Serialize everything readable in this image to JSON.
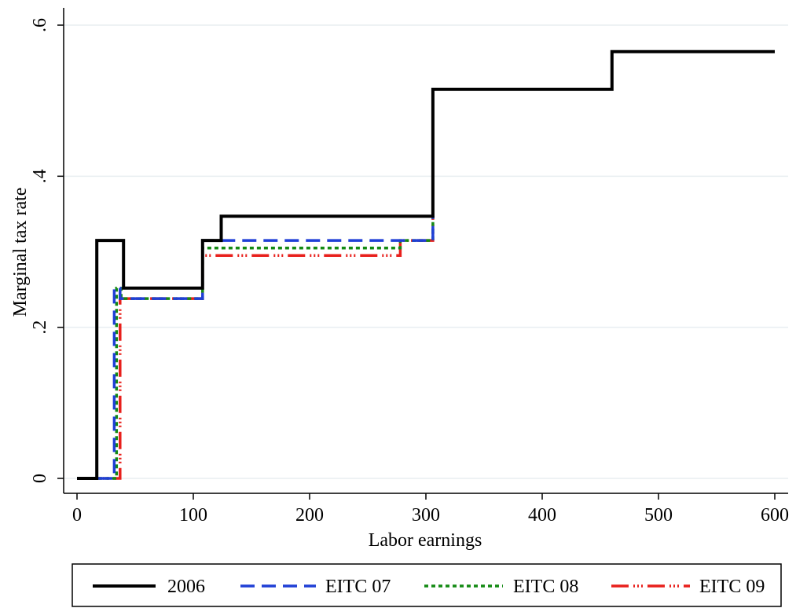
{
  "chart_data": {
    "type": "line",
    "xlabel": "Labor earnings",
    "ylabel": "Marginal tax rate",
    "xlim": [
      0,
      600
    ],
    "ylim": [
      0,
      0.6
    ],
    "x_ticks": [
      0,
      100,
      200,
      300,
      400,
      500,
      600
    ],
    "x_tick_labels": [
      "0",
      "100",
      "200",
      "300",
      "400",
      "500",
      "600"
    ],
    "y_ticks": [
      0,
      0.2,
      0.4,
      0.6
    ],
    "y_tick_labels": [
      "0",
      ".2",
      ".4",
      ".6"
    ],
    "grid": true,
    "legend_position": "bottom",
    "series": [
      {
        "name": "2006",
        "color": "#000000",
        "style": "solid",
        "x": [
          0,
          17,
          17,
          40,
          40,
          108,
          108,
          124,
          124,
          306,
          306,
          460,
          460,
          600
        ],
        "y": [
          0,
          0,
          0.315,
          0.315,
          0.252,
          0.252,
          0.315,
          0.315,
          0.347,
          0.347,
          0.515,
          0.515,
          0.565,
          0.565
        ]
      },
      {
        "name": "EITC 07",
        "color": "#1f3fd6",
        "style": "dash",
        "x": [
          0,
          32,
          32,
          37,
          37,
          108,
          108,
          124,
          124,
          306,
          306
        ],
        "y": [
          0,
          0,
          0.252,
          0.252,
          0.238,
          0.238,
          0.315,
          0.315,
          0.315,
          0.315,
          0.347
        ]
      },
      {
        "name": "EITC 08",
        "color": "#138a13",
        "style": "dot",
        "x": [
          0,
          34,
          34,
          38,
          38,
          108,
          108,
          278,
          278,
          306,
          306
        ],
        "y": [
          0,
          0,
          0.252,
          0.252,
          0.238,
          0.238,
          0.305,
          0.305,
          0.315,
          0.315,
          0.347
        ]
      },
      {
        "name": "EITC 09",
        "color": "#e8201c",
        "style": "longdash-dot",
        "x": [
          0,
          37,
          37,
          108,
          108,
          278,
          278,
          306,
          306
        ],
        "y": [
          0,
          0,
          0.238,
          0.238,
          0.295,
          0.295,
          0.315,
          0.315,
          0.347
        ]
      }
    ]
  }
}
